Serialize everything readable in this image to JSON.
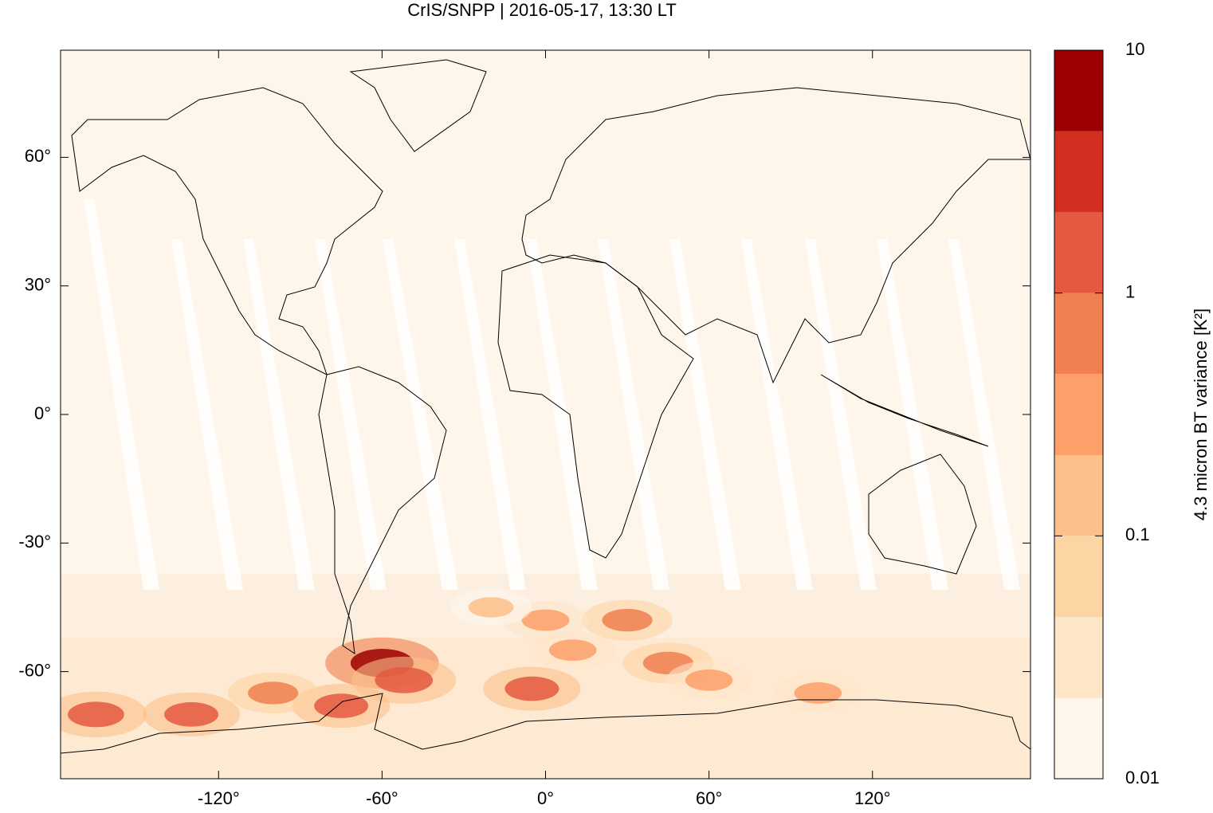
{
  "chart_data": {
    "type": "map",
    "title": "CrIS/SNPP | 2016-05-17, 13:30 LT",
    "xlim": [
      -178,
      178
    ],
    "ylim": [
      -85,
      85
    ],
    "xticks": [
      {
        "value": -120,
        "label": "-120°"
      },
      {
        "value": -60,
        "label": "-60°"
      },
      {
        "value": 0,
        "label": "0°"
      },
      {
        "value": 60,
        "label": "60°"
      },
      {
        "value": 120,
        "label": "120°"
      }
    ],
    "yticks": [
      {
        "value": -60,
        "label": "-60°"
      },
      {
        "value": -30,
        "label": "-30°"
      },
      {
        "value": 0,
        "label": "0°"
      },
      {
        "value": 30,
        "label": "30°"
      },
      {
        "value": 60,
        "label": "60°"
      }
    ],
    "colorbar": {
      "label": "4.3 micron BT variance [K²]",
      "scale": "log",
      "lim": [
        0.01,
        10
      ],
      "ticks": [
        0.01,
        0.1,
        1,
        10
      ],
      "levels": [
        0.01,
        0.0215,
        0.0464,
        0.1,
        0.215,
        0.464,
        1,
        2.15,
        4.64,
        10
      ],
      "colors": [
        "#fef5eb",
        "#fde5c8",
        "#fdd4a4",
        "#fcc08a",
        "#fc9f68",
        "#f07f50",
        "#e4593f",
        "#d22f20",
        "#9c0000"
      ]
    },
    "points": {
      "lon": [
        -60,
        -52,
        -130,
        -165,
        -5,
        30,
        45,
        -75,
        0,
        100,
        -100,
        60,
        -20,
        10
      ],
      "lat": [
        -58,
        -62,
        -70,
        -70,
        -64,
        -48,
        -58,
        -68,
        -48,
        -65,
        -65,
        -62,
        -45,
        -55
      ],
      "values": [
        5,
        2,
        1,
        1.5,
        1,
        0.5,
        0.5,
        1,
        0.3,
        0.3,
        0.5,
        0.3,
        0.2,
        0.3
      ]
    }
  }
}
